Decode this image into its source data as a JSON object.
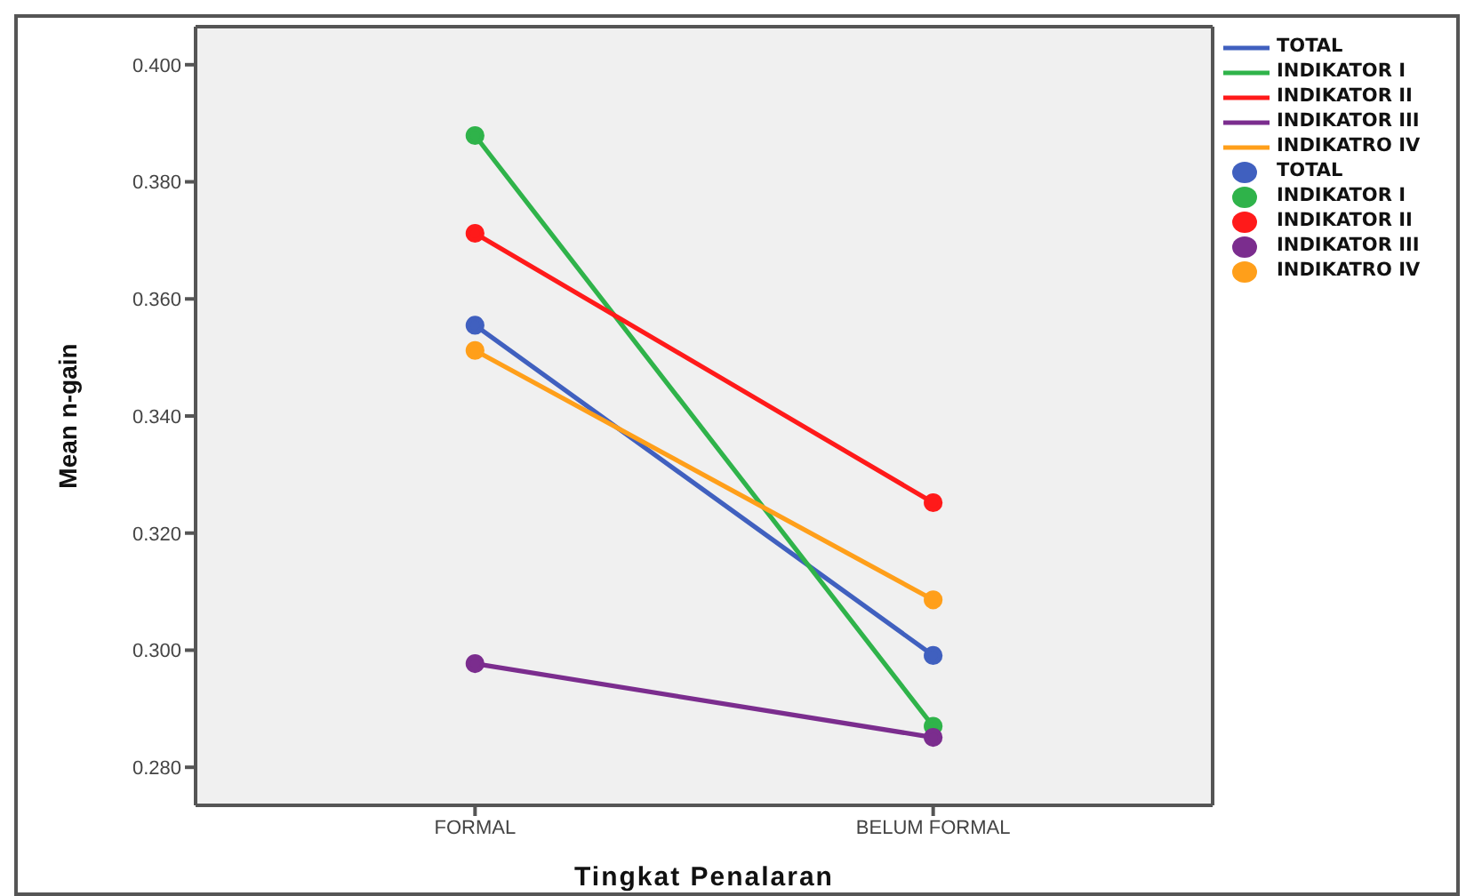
{
  "chart_data": {
    "type": "line",
    "xlabel": "Tingkat Penalaran",
    "ylabel": "Mean n-gain",
    "categories": [
      "FORMAL",
      "BELUM FORMAL"
    ],
    "series": [
      {
        "name": "TOTAL",
        "color": "#4060bf",
        "values": [
          0.3555,
          0.2991
        ]
      },
      {
        "name": "INDIKATOR I",
        "color": "#2fb34a",
        "values": [
          0.3879,
          0.287
        ]
      },
      {
        "name": "INDIKATOR II",
        "color": "#ff1a1a",
        "values": [
          0.3712,
          0.3252
        ]
      },
      {
        "name": "INDIKATOR III",
        "color": "#7b2d8e",
        "values": [
          0.2977,
          0.2851
        ]
      },
      {
        "name": "INDIKATRO IV",
        "color": "#ff9f1a",
        "values": [
          0.3512,
          0.3086
        ]
      }
    ],
    "ylim": [
      0.2735,
      0.4065
    ],
    "yticks": [
      {
        "value": 0.28,
        "label": "0.280"
      },
      {
        "value": 0.3,
        "label": "0.300"
      },
      {
        "value": 0.32,
        "label": "0.320"
      },
      {
        "value": 0.34,
        "label": "0.340"
      },
      {
        "value": 0.36,
        "label": "0.360"
      },
      {
        "value": 0.38,
        "label": "0.380"
      },
      {
        "value": 0.4,
        "label": "0.400"
      }
    ],
    "grid": false,
    "legend": "top right",
    "marker": "circle",
    "line_style": "solid"
  }
}
